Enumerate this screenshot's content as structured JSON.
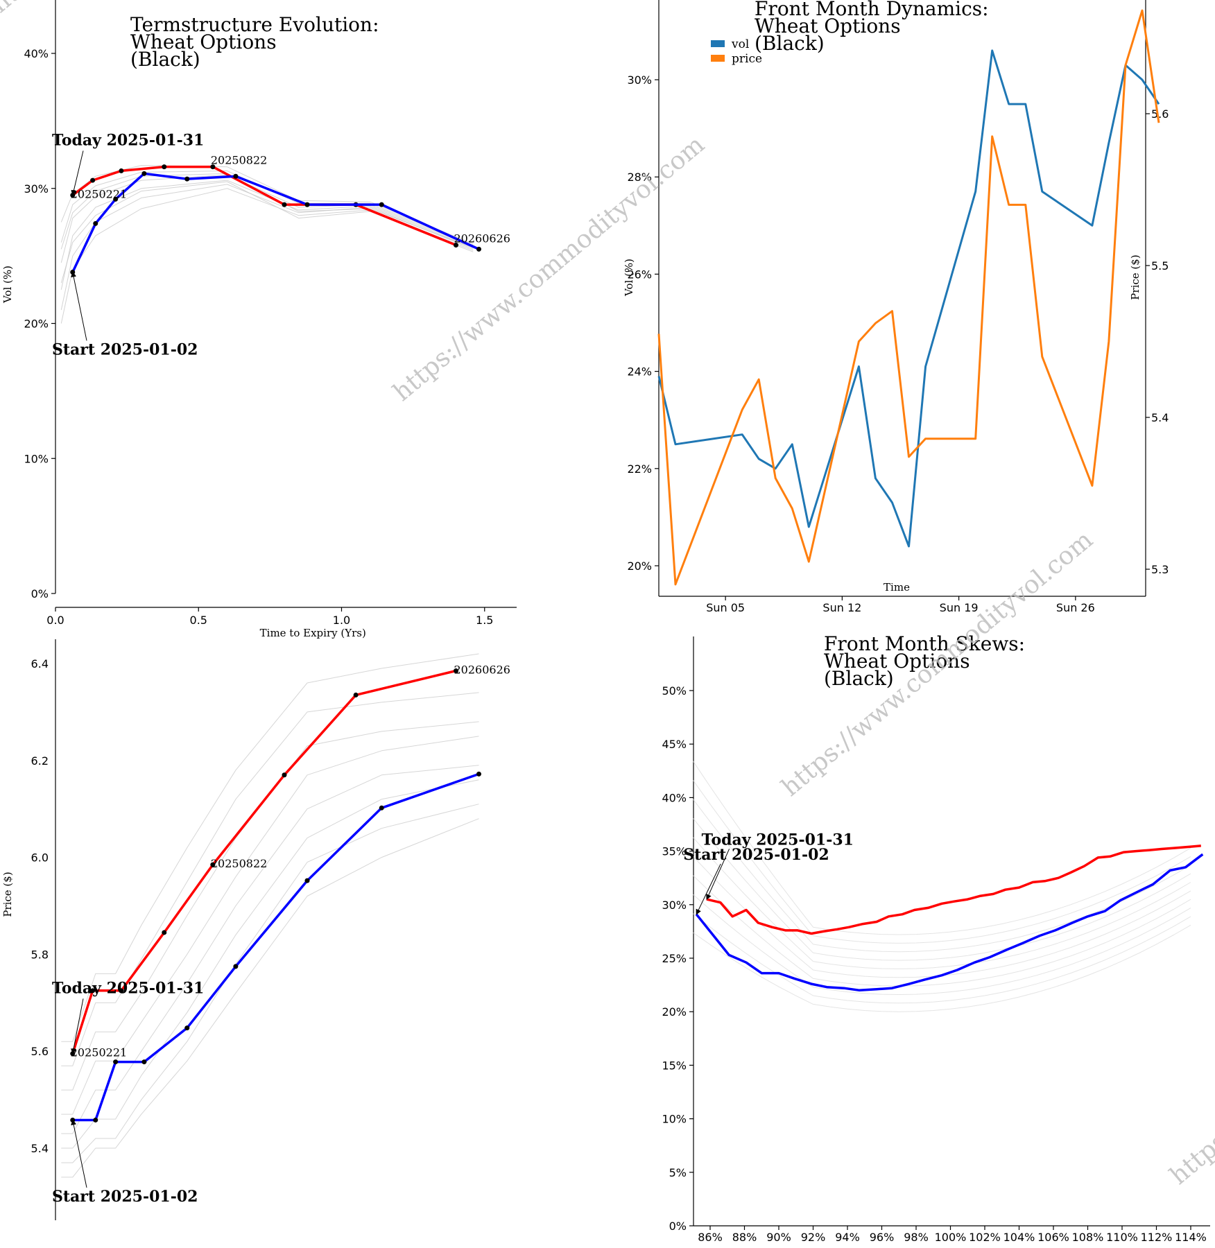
{
  "chart_data": [
    {
      "id": "termstructure",
      "type": "line",
      "title": [
        "Termstructure Evolution:",
        "Wheat Options",
        "(Black)"
      ],
      "xlabel": "Time to Expiry (Yrs)",
      "ylabel": "Vol (%)",
      "xlim": [
        0,
        1.6
      ],
      "ylim": [
        0,
        44
      ],
      "xticks": [
        0.0,
        0.5,
        1.0,
        1.5
      ],
      "xtick_labels": [
        "0.0",
        "0.5",
        "1.0",
        "1.5"
      ],
      "yticks": [
        0,
        10,
        20,
        30,
        40
      ],
      "ytick_labels": [
        "0%",
        "10%",
        "20%",
        "30%",
        "40%"
      ],
      "series": [
        {
          "name": "Today 2025-01-31",
          "color": "#ff0000",
          "x": [
            0.06,
            0.13,
            0.23,
            0.38,
            0.55,
            0.8,
            1.05,
            1.4
          ],
          "y": [
            29.5,
            30.6,
            31.3,
            31.6,
            31.6,
            28.8,
            28.8,
            25.8
          ]
        },
        {
          "name": "Start 2025-01-02",
          "color": "#0000ff",
          "x": [
            0.06,
            0.14,
            0.21,
            0.31,
            0.46,
            0.63,
            0.88,
            1.14,
            1.48
          ],
          "y": [
            23.8,
            27.4,
            29.2,
            31.1,
            30.7,
            30.9,
            28.8,
            28.8,
            25.5
          ]
        }
      ],
      "background_series": [
        {
          "x": [
            0.02,
            0.06,
            0.14,
            0.3,
            0.6,
            0.85,
            1.1,
            1.46
          ],
          "y": [
            20.0,
            24.0,
            26.5,
            28.5,
            30.0,
            28.0,
            28.4,
            25.4
          ]
        },
        {
          "x": [
            0.02,
            0.06,
            0.14,
            0.3,
            0.6,
            0.85,
            1.1,
            1.46
          ],
          "y": [
            21.0,
            25.0,
            27.5,
            29.3,
            30.3,
            28.2,
            28.6,
            25.5
          ]
        },
        {
          "x": [
            0.02,
            0.06,
            0.14,
            0.3,
            0.6,
            0.85,
            1.1,
            1.46
          ],
          "y": [
            22.5,
            26.5,
            28.6,
            30.0,
            30.6,
            28.4,
            28.7,
            25.6
          ]
        },
        {
          "x": [
            0.02,
            0.06,
            0.14,
            0.3,
            0.6,
            0.85,
            1.1,
            1.46
          ],
          "y": [
            24.5,
            27.8,
            29.4,
            30.6,
            31.0,
            28.6,
            28.8,
            25.7
          ]
        },
        {
          "x": [
            0.02,
            0.06,
            0.14,
            0.3,
            0.6,
            0.85,
            1.1,
            1.46
          ],
          "y": [
            26.0,
            28.8,
            30.2,
            31.2,
            31.3,
            28.9,
            28.9,
            25.8
          ]
        },
        {
          "x": [
            0.02,
            0.06,
            0.14,
            0.3,
            0.6,
            0.85,
            1.1,
            1.46
          ],
          "y": [
            27.5,
            29.6,
            30.9,
            31.7,
            31.6,
            29.1,
            29.0,
            25.9
          ]
        },
        {
          "x": [
            0.02,
            0.06,
            0.14,
            0.3,
            0.6,
            0.85,
            1.1,
            1.46
          ],
          "y": [
            23.0,
            26.0,
            28.0,
            29.8,
            30.5,
            27.8,
            28.3,
            25.3
          ]
        },
        {
          "x": [
            0.02,
            0.06,
            0.14,
            0.3,
            0.6,
            0.85,
            1.1,
            1.46
          ],
          "y": [
            25.5,
            28.2,
            29.8,
            30.9,
            31.1,
            28.3,
            28.5,
            25.6
          ]
        }
      ],
      "contract_labels": [
        {
          "text": "20250221",
          "x": 0.06,
          "y": 29.5
        },
        {
          "text": "20250822",
          "x": 0.55,
          "y": 31.6
        },
        {
          "text": "20260626",
          "x": 1.4,
          "y": 25.8
        }
      ],
      "annotations": [
        {
          "text": "Today 2025-01-31",
          "x": 0.06,
          "y": 29.5,
          "tx": 0.0,
          "ty": 33.2
        },
        {
          "text": "Start 2025-01-02",
          "x": 0.06,
          "y": 23.8,
          "tx": 0.0,
          "ty": 17.7
        }
      ]
    },
    {
      "id": "frontmonth",
      "type": "line",
      "title": [
        "Front Month Dynamics:",
        "Wheat Options",
        "(Black)"
      ],
      "xlabel": "Time",
      "ylabel": "Vol (%)",
      "ylabel_right": "Price ($)",
      "xlim": [
        "2025-01-01",
        "2025-01-31"
      ],
      "ylim": [
        19.0,
        32.2
      ],
      "ylim_right": [
        5.28,
        5.68
      ],
      "xticks": [
        "2025-01-05",
        "2025-01-12",
        "2025-01-19",
        "2025-01-26"
      ],
      "xtick_labels": [
        "Sun 05",
        "Sun 12",
        "Sun 19",
        "Sun 26"
      ],
      "yticks": [
        20,
        22,
        24,
        26,
        28,
        30
      ],
      "ytick_labels": [
        "20%",
        "22%",
        "24%",
        "26%",
        "28%",
        "30%"
      ],
      "yticks_right": [
        5.3,
        5.4,
        5.5,
        5.6
      ],
      "ytick_labels_right": [
        "5.3",
        "5.4",
        "5.5",
        "5.6"
      ],
      "legend": {
        "position": "top-left"
      },
      "dates": [
        "2025-01-01",
        "2025-01-02",
        "2025-01-06",
        "2025-01-07",
        "2025-01-08",
        "2025-01-09",
        "2025-01-10",
        "2025-01-13",
        "2025-01-14",
        "2025-01-15",
        "2025-01-16",
        "2025-01-17",
        "2025-01-20",
        "2025-01-21",
        "2025-01-22",
        "2025-01-23",
        "2025-01-24",
        "2025-01-27",
        "2025-01-28",
        "2025-01-29",
        "2025-01-30",
        "2025-01-31"
      ],
      "series": [
        {
          "name": "vol",
          "color": "#1f77b4",
          "values": [
            23.9,
            22.5,
            22.7,
            22.2,
            22.0,
            22.5,
            20.8,
            24.1,
            21.8,
            21.3,
            20.4,
            24.1,
            27.7,
            30.6,
            29.5,
            29.5,
            27.7,
            27.0,
            28.7,
            30.3,
            30.0,
            29.5
          ]
        },
        {
          "name": "price",
          "color": "#ff7f0e",
          "values": [
            5.455,
            5.29,
            5.405,
            5.425,
            5.36,
            5.34,
            5.305,
            5.45,
            5.462,
            5.47,
            5.374,
            5.386,
            5.386,
            5.585,
            5.54,
            5.54,
            5.44,
            5.355,
            5.45,
            5.632,
            5.668,
            5.594
          ]
        }
      ]
    },
    {
      "id": "prices",
      "type": "line",
      "title": [],
      "xlabel": "",
      "ylabel": "Price ($)",
      "xlim": [
        0,
        1.6
      ],
      "ylim": [
        5.25,
        6.45
      ],
      "yticks": [
        5.4,
        5.6,
        5.8,
        6.0,
        6.2,
        6.4
      ],
      "ytick_labels": [
        "5.4",
        "5.6",
        "5.8",
        "6.0",
        "6.2",
        "6.4"
      ],
      "series": [
        {
          "name": "Today 2025-01-31",
          "color": "#ff0000",
          "x": [
            0.06,
            0.13,
            0.23,
            0.38,
            0.55,
            0.8,
            1.05,
            1.4
          ],
          "y": [
            5.595,
            5.725,
            5.725,
            5.845,
            5.985,
            6.17,
            6.335,
            6.385
          ]
        },
        {
          "name": "Start 2025-01-02",
          "color": "#0000ff",
          "x": [
            0.06,
            0.14,
            0.21,
            0.31,
            0.46,
            0.63,
            0.88,
            1.14,
            1.48
          ],
          "y": [
            5.458,
            5.458,
            5.578,
            5.578,
            5.648,
            5.775,
            5.952,
            6.102,
            6.172
          ]
        }
      ],
      "background_series": [
        {
          "x": [
            0.02,
            0.06,
            0.14,
            0.21,
            0.3,
            0.46,
            0.63,
            0.88,
            1.14,
            1.48
          ],
          "y": [
            5.37,
            5.37,
            5.42,
            5.42,
            5.5,
            5.62,
            5.78,
            5.99,
            6.06,
            6.11
          ]
        },
        {
          "x": [
            0.02,
            0.06,
            0.14,
            0.21,
            0.3,
            0.46,
            0.63,
            0.88,
            1.14,
            1.48
          ],
          "y": [
            5.4,
            5.4,
            5.46,
            5.46,
            5.55,
            5.68,
            5.84,
            6.04,
            6.12,
            6.16
          ]
        },
        {
          "x": [
            0.02,
            0.06,
            0.14,
            0.21,
            0.3,
            0.46,
            0.63,
            0.88,
            1.14,
            1.48
          ],
          "y": [
            5.43,
            5.43,
            5.52,
            5.52,
            5.6,
            5.74,
            5.9,
            6.1,
            6.17,
            6.19
          ]
        },
        {
          "x": [
            0.02,
            0.06,
            0.14,
            0.21,
            0.3,
            0.46,
            0.63,
            0.88,
            1.14,
            1.48
          ],
          "y": [
            5.47,
            5.47,
            5.58,
            5.58,
            5.66,
            5.8,
            5.96,
            6.17,
            6.22,
            6.25
          ]
        },
        {
          "x": [
            0.02,
            0.06,
            0.14,
            0.21,
            0.3,
            0.46,
            0.63,
            0.88,
            1.14,
            1.48
          ],
          "y": [
            5.52,
            5.52,
            5.64,
            5.64,
            5.72,
            5.88,
            6.04,
            6.23,
            6.26,
            6.28
          ]
        },
        {
          "x": [
            0.02,
            0.06,
            0.14,
            0.21,
            0.3,
            0.46,
            0.63,
            0.88,
            1.14,
            1.48
          ],
          "y": [
            5.57,
            5.57,
            5.7,
            5.7,
            5.79,
            5.95,
            6.12,
            6.3,
            6.32,
            6.34
          ]
        },
        {
          "x": [
            0.02,
            0.06,
            0.14,
            0.21,
            0.3,
            0.46,
            0.63,
            0.88,
            1.14,
            1.48
          ],
          "y": [
            5.62,
            5.62,
            5.76,
            5.76,
            5.86,
            6.02,
            6.18,
            6.36,
            6.39,
            6.42
          ]
        },
        {
          "x": [
            0.02,
            0.06,
            0.14,
            0.21,
            0.3,
            0.46,
            0.63,
            0.88,
            1.14,
            1.48
          ],
          "y": [
            5.34,
            5.34,
            5.4,
            5.4,
            5.47,
            5.58,
            5.72,
            5.92,
            6.0,
            6.08
          ]
        }
      ],
      "contract_labels": [
        {
          "text": "20250221",
          "x": 0.06,
          "y": 5.595
        },
        {
          "text": "20250822",
          "x": 0.55,
          "y": 5.985
        },
        {
          "text": "20260626",
          "x": 1.4,
          "y": 6.385
        }
      ],
      "annotations": [
        {
          "text": "Today 2025-01-31",
          "x": 0.06,
          "y": 5.595,
          "tx": 0.0,
          "ty": 5.72
        },
        {
          "text": "Start 2025-01-02",
          "x": 0.06,
          "y": 5.458,
          "tx": 0.0,
          "ty": 5.29
        }
      ]
    },
    {
      "id": "skews",
      "type": "line",
      "title": [
        "Front Month Skews:",
        "Wheat Options",
        "(Black)"
      ],
      "xlabel": "",
      "ylabel": "",
      "xlim": [
        85,
        115
      ],
      "ylim": [
        0,
        55
      ],
      "xticks": [
        86,
        88,
        90,
        92,
        94,
        96,
        98,
        100,
        102,
        104,
        106,
        108,
        110,
        112,
        114
      ],
      "xtick_labels": [
        "86%",
        "88%",
        "90%",
        "92%",
        "94%",
        "96%",
        "98%",
        "100%",
        "102%",
        "104%",
        "106%",
        "108%",
        "110%",
        "112%",
        "114%"
      ],
      "yticks": [
        0,
        5,
        10,
        15,
        20,
        25,
        30,
        35,
        40,
        45,
        50
      ],
      "ytick_labels": [
        "0%",
        "5%",
        "10%",
        "15%",
        "20%",
        "25%",
        "30%",
        "35%",
        "40%",
        "45%",
        "50%"
      ],
      "series": [
        {
          "name": "Today 2025-01-31",
          "color": "#ff0000",
          "x": [
            85.8,
            86.6,
            87.3,
            88.1,
            88.8,
            89.6,
            90.4,
            91.1,
            91.9,
            92.6,
            93.4,
            94.1,
            94.9,
            95.7,
            96.4,
            97.2,
            97.9,
            98.7,
            99.5,
            100.2,
            101.0,
            101.7,
            102.5,
            103.2,
            104.0,
            104.8,
            105.5,
            106.3,
            107.0,
            107.8,
            108.6,
            109.3,
            110.1,
            110.8,
            111.6,
            112.3,
            113.1,
            113.9,
            114.6
          ],
          "y": [
            30.5,
            30.2,
            28.9,
            29.5,
            28.3,
            27.9,
            27.6,
            27.6,
            27.3,
            27.5,
            27.7,
            27.9,
            28.2,
            28.4,
            28.9,
            29.1,
            29.5,
            29.7,
            30.1,
            30.3,
            30.5,
            30.8,
            31.0,
            31.4,
            31.6,
            32.1,
            32.2,
            32.5,
            33.0,
            33.6,
            34.4,
            34.5,
            34.9,
            35.0,
            35.1,
            35.2,
            35.3,
            35.4,
            35.5
          ]
        },
        {
          "name": "Start 2025-01-02",
          "color": "#0000ff",
          "x": [
            85.2,
            86.2,
            87.1,
            88.1,
            89.0,
            90.0,
            90.9,
            91.9,
            92.8,
            93.8,
            94.7,
            95.7,
            96.6,
            97.6,
            98.5,
            99.5,
            100.4,
            101.4,
            102.3,
            103.3,
            104.2,
            105.2,
            106.1,
            107.1,
            108.0,
            109.0,
            109.9,
            110.9,
            111.8,
            112.8,
            113.7,
            114.7
          ],
          "y": [
            29.1,
            27.1,
            25.3,
            24.6,
            23.6,
            23.6,
            23.1,
            22.6,
            22.3,
            22.2,
            22.0,
            22.1,
            22.2,
            22.6,
            23.0,
            23.4,
            23.9,
            24.6,
            25.1,
            25.8,
            26.4,
            27.1,
            27.6,
            28.3,
            28.9,
            29.4,
            30.4,
            31.2,
            31.9,
            33.2,
            33.5,
            34.7
          ]
        }
      ],
      "annotations": [
        {
          "text": "Today 2025-01-31",
          "x": 85.8,
          "y": 30.5,
          "tx": 85.5,
          "ty": 35.6
        },
        {
          "text": "Start 2025-01-02",
          "x": 85.2,
          "y": 29.1,
          "tx": 85.0,
          "ty": 34.2
        }
      ]
    }
  ],
  "watermark": "https://www.commodityvol.com"
}
